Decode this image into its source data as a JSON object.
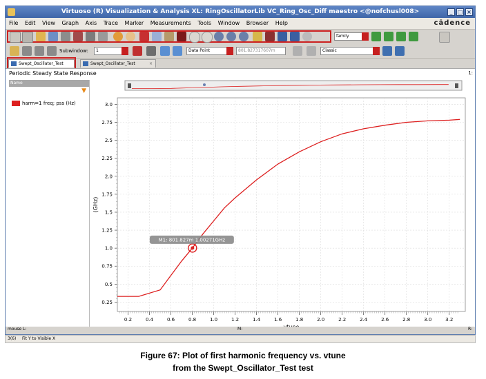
{
  "window": {
    "title": "Virtuoso (R) Visualization & Analysis XL: RingOscillatorLib VC_Ring_Osc_Diff maestro <@nofchusl008>",
    "brand": "cādence"
  },
  "menu": [
    "File",
    "Edit",
    "View",
    "Graph",
    "Axis",
    "Trace",
    "Marker",
    "Measurements",
    "Tools",
    "Window",
    "Browser",
    "Help"
  ],
  "toolbar": {
    "family_value": "family",
    "subwindow_label": "Subwindow:",
    "subwindow_value": "1",
    "datapoint_value": "Data Point",
    "coord_value": "801.827317607m",
    "style_value": "Classic"
  },
  "tabs": [
    {
      "label": "Swept_Oscillator_Test",
      "active": true
    },
    {
      "label": "Swept_Oscillator_Test",
      "active": false
    }
  ],
  "plot": {
    "title": "Periodic Steady State Response",
    "legend_header": "Name",
    "legend_entry": "harm=1 freq; pss (Hz)",
    "corner_label": "1:",
    "marker_label": "M1: 801.827m 1.00271GHz"
  },
  "chart_data": {
    "type": "line",
    "xlabel": "vtune",
    "ylabel": "(GHz)",
    "xlim": [
      0.1,
      3.35
    ],
    "ylim": [
      0.12,
      3.09
    ],
    "x_ticks": [
      0.2,
      0.4,
      0.6,
      0.8,
      1.0,
      1.2,
      1.4,
      1.6,
      1.8,
      2.0,
      2.2,
      2.4,
      2.6,
      2.8,
      3.0,
      3.2
    ],
    "x_tick_labels": [
      "0.2",
      "0.4",
      "0.6",
      "0.8",
      "1.0",
      "1.2",
      "1.4",
      "1.6",
      "1.8",
      "2.0",
      "2.2",
      "2.4",
      "2.6",
      "2.8",
      "3.0",
      "3.2"
    ],
    "y_ticks": [
      0.25,
      0.5,
      0.75,
      1.0,
      1.25,
      1.5,
      1.75,
      2.0,
      2.25,
      2.5,
      2.75,
      3.0
    ],
    "y_tick_labels": [
      "0.25",
      "0.5",
      "0.75",
      "1.0",
      "1.25",
      "1.5",
      "1.75",
      "2.0",
      "2.25",
      "2.5",
      "2.75",
      "3.0"
    ],
    "grid": true,
    "color": "#dd2020",
    "series": [
      {
        "name": "harm=1 freq; pss (Hz)",
        "x": [
          0.1,
          0.3,
          0.5,
          0.6,
          0.7,
          0.8,
          0.9,
          1.0,
          1.1,
          1.2,
          1.4,
          1.6,
          1.8,
          2.0,
          2.2,
          2.4,
          2.6,
          2.8,
          3.0,
          3.2,
          3.3
        ],
        "y": [
          0.33,
          0.33,
          0.42,
          0.62,
          0.82,
          1.0,
          1.2,
          1.38,
          1.56,
          1.7,
          1.95,
          2.17,
          2.34,
          2.48,
          2.59,
          2.66,
          2.71,
          2.75,
          2.77,
          2.78,
          2.79
        ]
      }
    ],
    "marker": {
      "x": 0.801827,
      "y": 1.00271
    }
  },
  "statusbar": {
    "mouse_label": "mouse L:",
    "mid_label": "M:",
    "right_label": "R:",
    "line_number": "3(6)",
    "message": "Fit Y to Visible X"
  },
  "caption": {
    "line1": "Figure 67: Plot of first harmonic frequency vs. vtune",
    "line2": "from the Swept_Oscillator_Test test"
  }
}
